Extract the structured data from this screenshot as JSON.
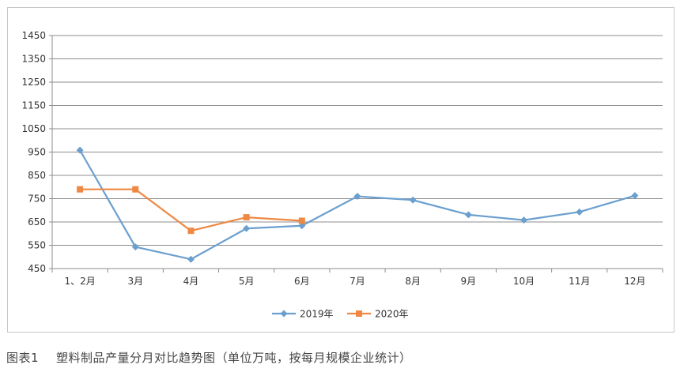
{
  "caption": {
    "label": "图表1",
    "text": "塑料制品产量分月对比趋势图（单位万吨，按每月规模企业统计）"
  },
  "chart_data": {
    "type": "line",
    "categories": [
      "1、2月",
      "3月",
      "4月",
      "5月",
      "6月",
      "7月",
      "8月",
      "9月",
      "10月",
      "11月",
      "12月"
    ],
    "series": [
      {
        "name": "2019年",
        "color": "#6b9fcf",
        "marker": "diamond",
        "values": [
          958,
          543,
          490,
          622,
          634,
          760,
          744,
          681,
          658,
          693,
          763
        ]
      },
      {
        "name": "2020年",
        "color": "#ee8843",
        "marker": "square",
        "values": [
          790,
          790,
          612,
          670,
          655,
          null,
          null,
          null,
          null,
          null,
          null
        ]
      }
    ],
    "ylim": [
      450,
      1450
    ],
    "yticks": [
      450,
      550,
      650,
      750,
      850,
      950,
      1050,
      1150,
      1250,
      1350,
      1450
    ],
    "grid": true,
    "legend": "bottom-center"
  }
}
